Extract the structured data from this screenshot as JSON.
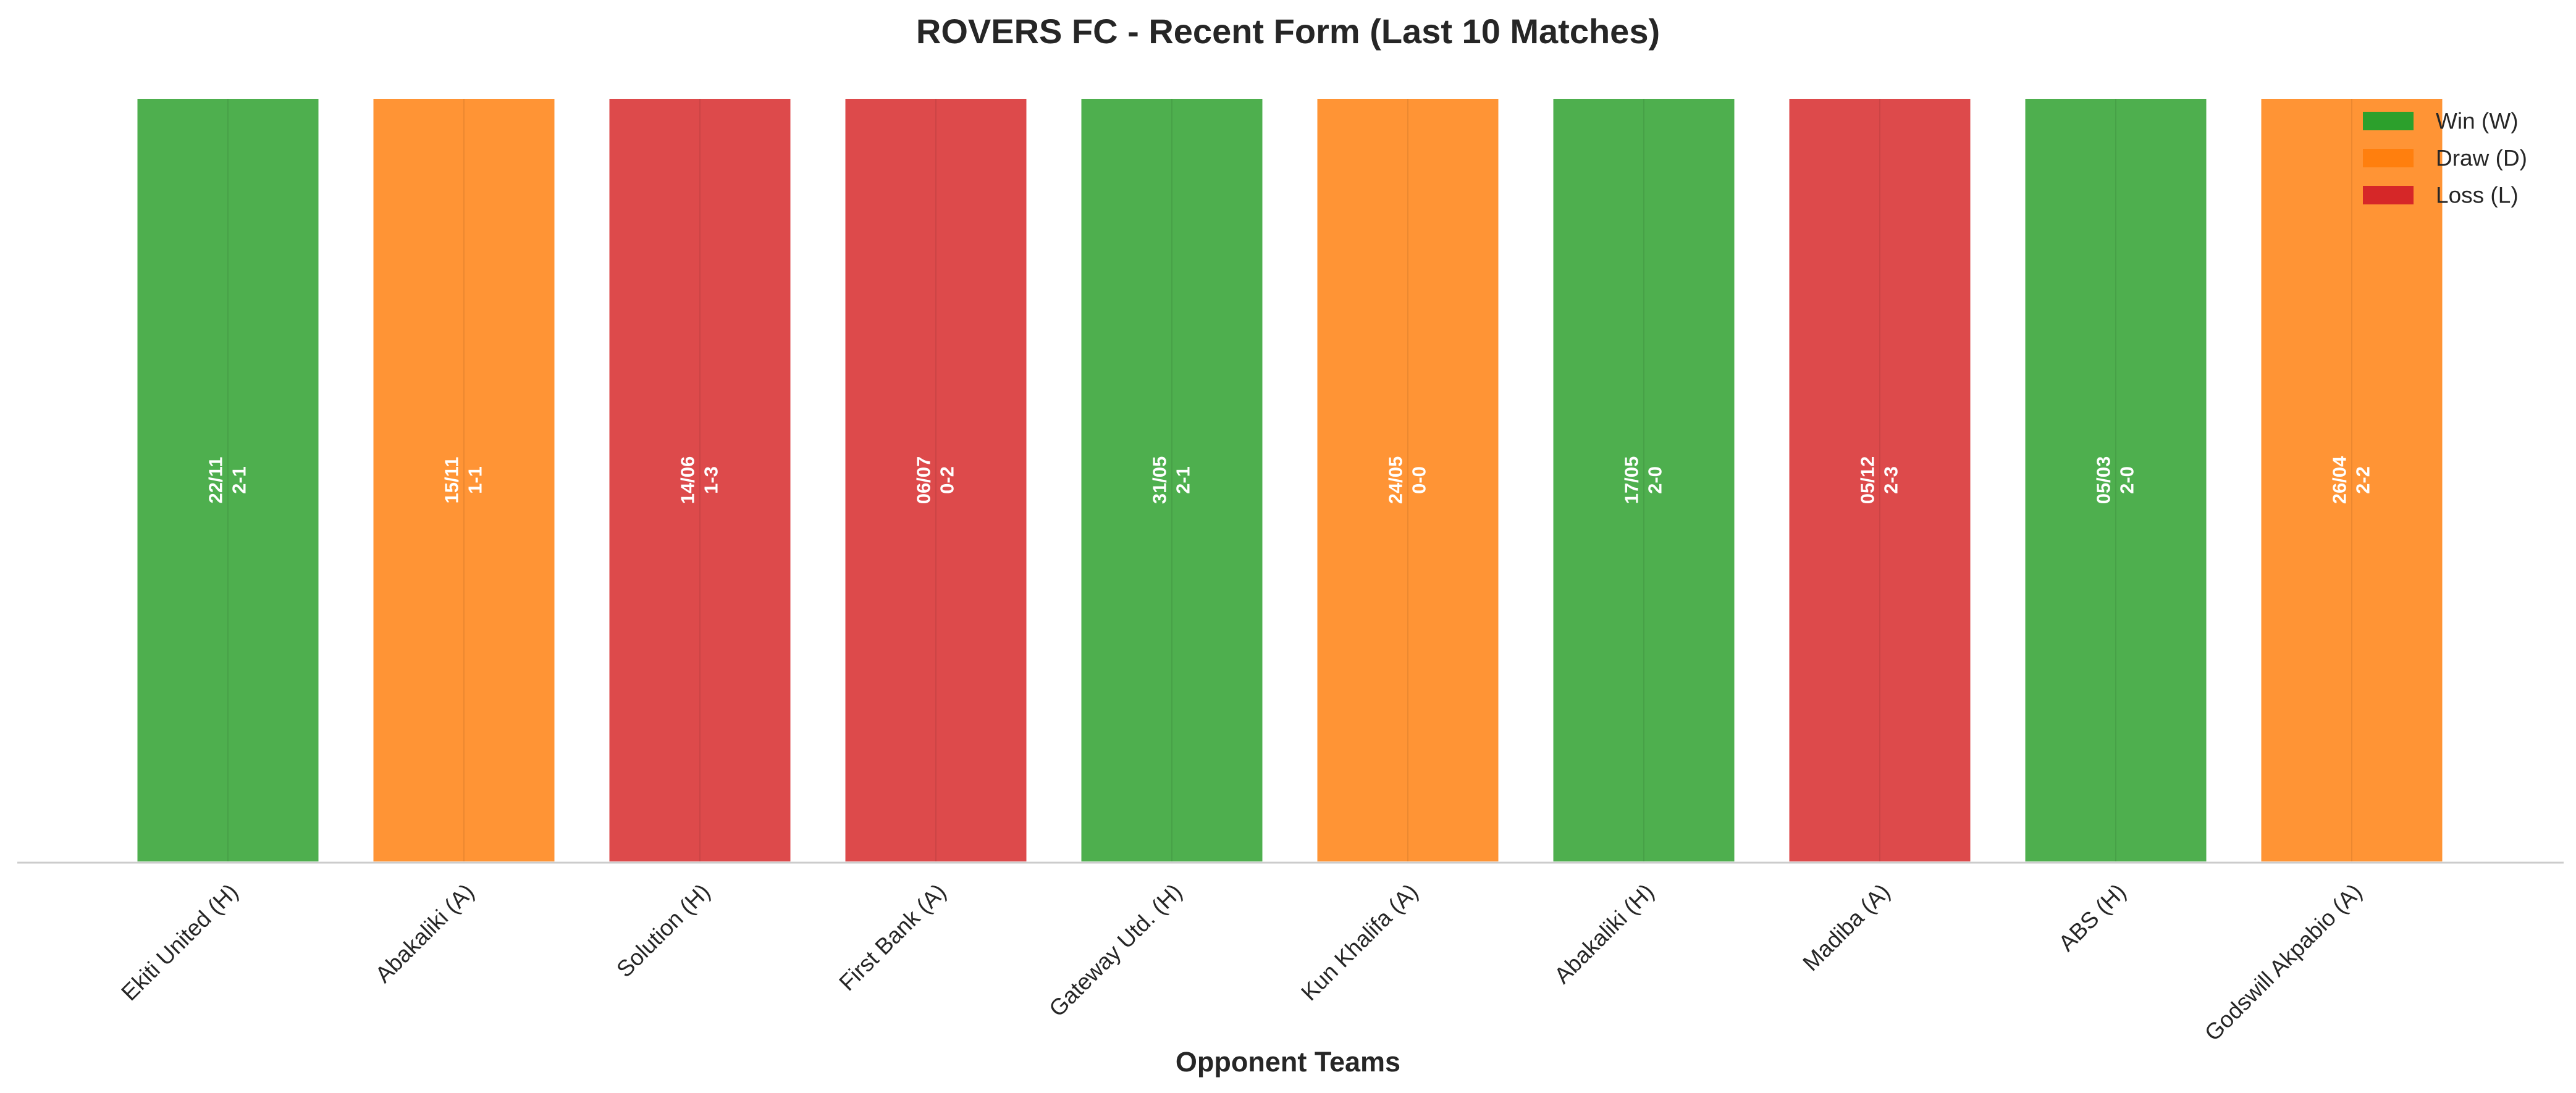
{
  "chart_data": {
    "type": "bar",
    "title": "ROVERS FC - Recent Form (Last 10 Matches)",
    "xlabel": "Opponent Teams",
    "ylabel": "",
    "categories": [
      "Ekiti United (H)",
      "Abakaliki (A)",
      "Solution (H)",
      "First Bank (A)",
      "Gateway Utd. (H)",
      "Kun Khalifa (A)",
      "Abakaliki (H)",
      "Madiba (A)",
      "ABS (H)",
      "Godswill Akpabio (A)"
    ],
    "values": [
      1,
      1,
      1,
      1,
      1,
      1,
      1,
      1,
      1,
      1
    ],
    "results": [
      "W",
      "D",
      "L",
      "L",
      "W",
      "D",
      "W",
      "L",
      "W",
      "D"
    ],
    "dates": [
      "22/11",
      "15/11",
      "14/06",
      "06/07",
      "31/05",
      "24/05",
      "17/05",
      "05/12",
      "05/03",
      "26/04"
    ],
    "scores": [
      "2-1",
      "1-1",
      "1-3",
      "0-2",
      "2-1",
      "0-0",
      "2-0",
      "2-3",
      "2-0",
      "2-2"
    ],
    "ylim": [
      0,
      1
    ],
    "grid": false,
    "legend": {
      "placement": "top-right",
      "entries": [
        {
          "key": "W",
          "label": "Win (W)",
          "color": "#2ca02c"
        },
        {
          "key": "D",
          "label": "Draw (D)",
          "color": "#ff7f0e"
        },
        {
          "key": "L",
          "label": "Loss (L)",
          "color": "#d62728"
        }
      ]
    }
  }
}
